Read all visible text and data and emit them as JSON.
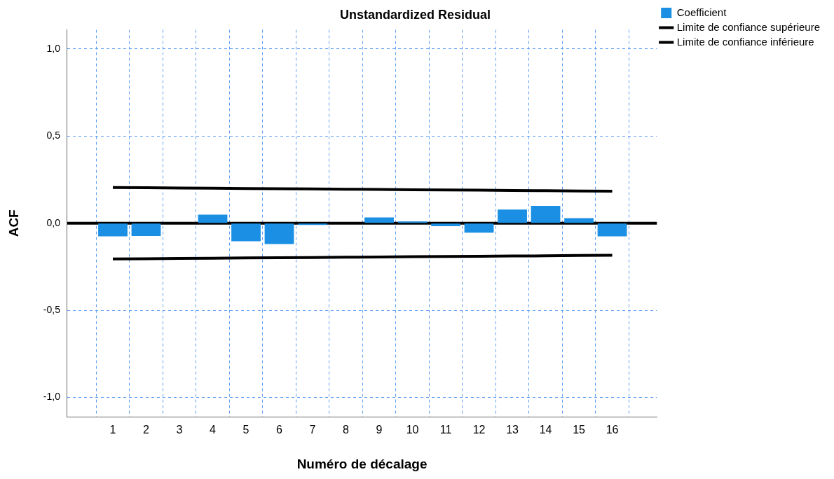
{
  "chart_data": {
    "type": "bar",
    "title": "Unstandardized Residual",
    "xlabel": "Numéro de décalage",
    "ylabel": "ACF",
    "x": [
      1,
      2,
      3,
      4,
      5,
      6,
      7,
      8,
      9,
      10,
      11,
      12,
      13,
      14,
      15,
      16
    ],
    "xlim": [
      -0.37,
      17.34
    ],
    "xticks": [
      1,
      2,
      3,
      4,
      5,
      6,
      7,
      8,
      9,
      10,
      11,
      12,
      13,
      14,
      15,
      16
    ],
    "ylim": [
      -1.11,
      1.11
    ],
    "yticks": [
      {
        "value": -1,
        "label": "-1,0"
      },
      {
        "value": -0.5,
        "label": "-0,5"
      },
      {
        "value": 0,
        "label": "0,0"
      },
      {
        "value": 0.5,
        "label": "0,5"
      },
      {
        "value": 1,
        "label": "1,0"
      }
    ],
    "series": [
      {
        "name": "Coefficient",
        "color": "#1a8fe3",
        "values": [
          -0.075,
          -0.073,
          0,
          0.049,
          -0.103,
          -0.119,
          -0.01,
          0,
          0.033,
          0.01,
          -0.017,
          -0.054,
          0.079,
          0.1,
          0.029,
          -0.075
        ]
      },
      {
        "name": "Limite de confiance supérieure",
        "type": "line",
        "color": "#000000",
        "values": [
          0.205,
          0.204,
          0.202,
          0.201,
          0.199,
          0.198,
          0.197,
          0.195,
          0.194,
          0.192,
          0.191,
          0.19,
          0.188,
          0.187,
          0.185,
          0.184
        ]
      },
      {
        "name": "Limite de confiance inférieure",
        "type": "line",
        "color": "#000000",
        "values": [
          -0.205,
          -0.204,
          -0.202,
          -0.201,
          -0.199,
          -0.198,
          -0.197,
          -0.195,
          -0.194,
          -0.192,
          -0.191,
          -0.19,
          -0.188,
          -0.187,
          -0.185,
          -0.184
        ]
      }
    ],
    "ref_lines": [
      {
        "axis": "y",
        "value": 0,
        "color": "#000000"
      }
    ],
    "grid": true,
    "legend": "top right",
    "marker": "none"
  }
}
